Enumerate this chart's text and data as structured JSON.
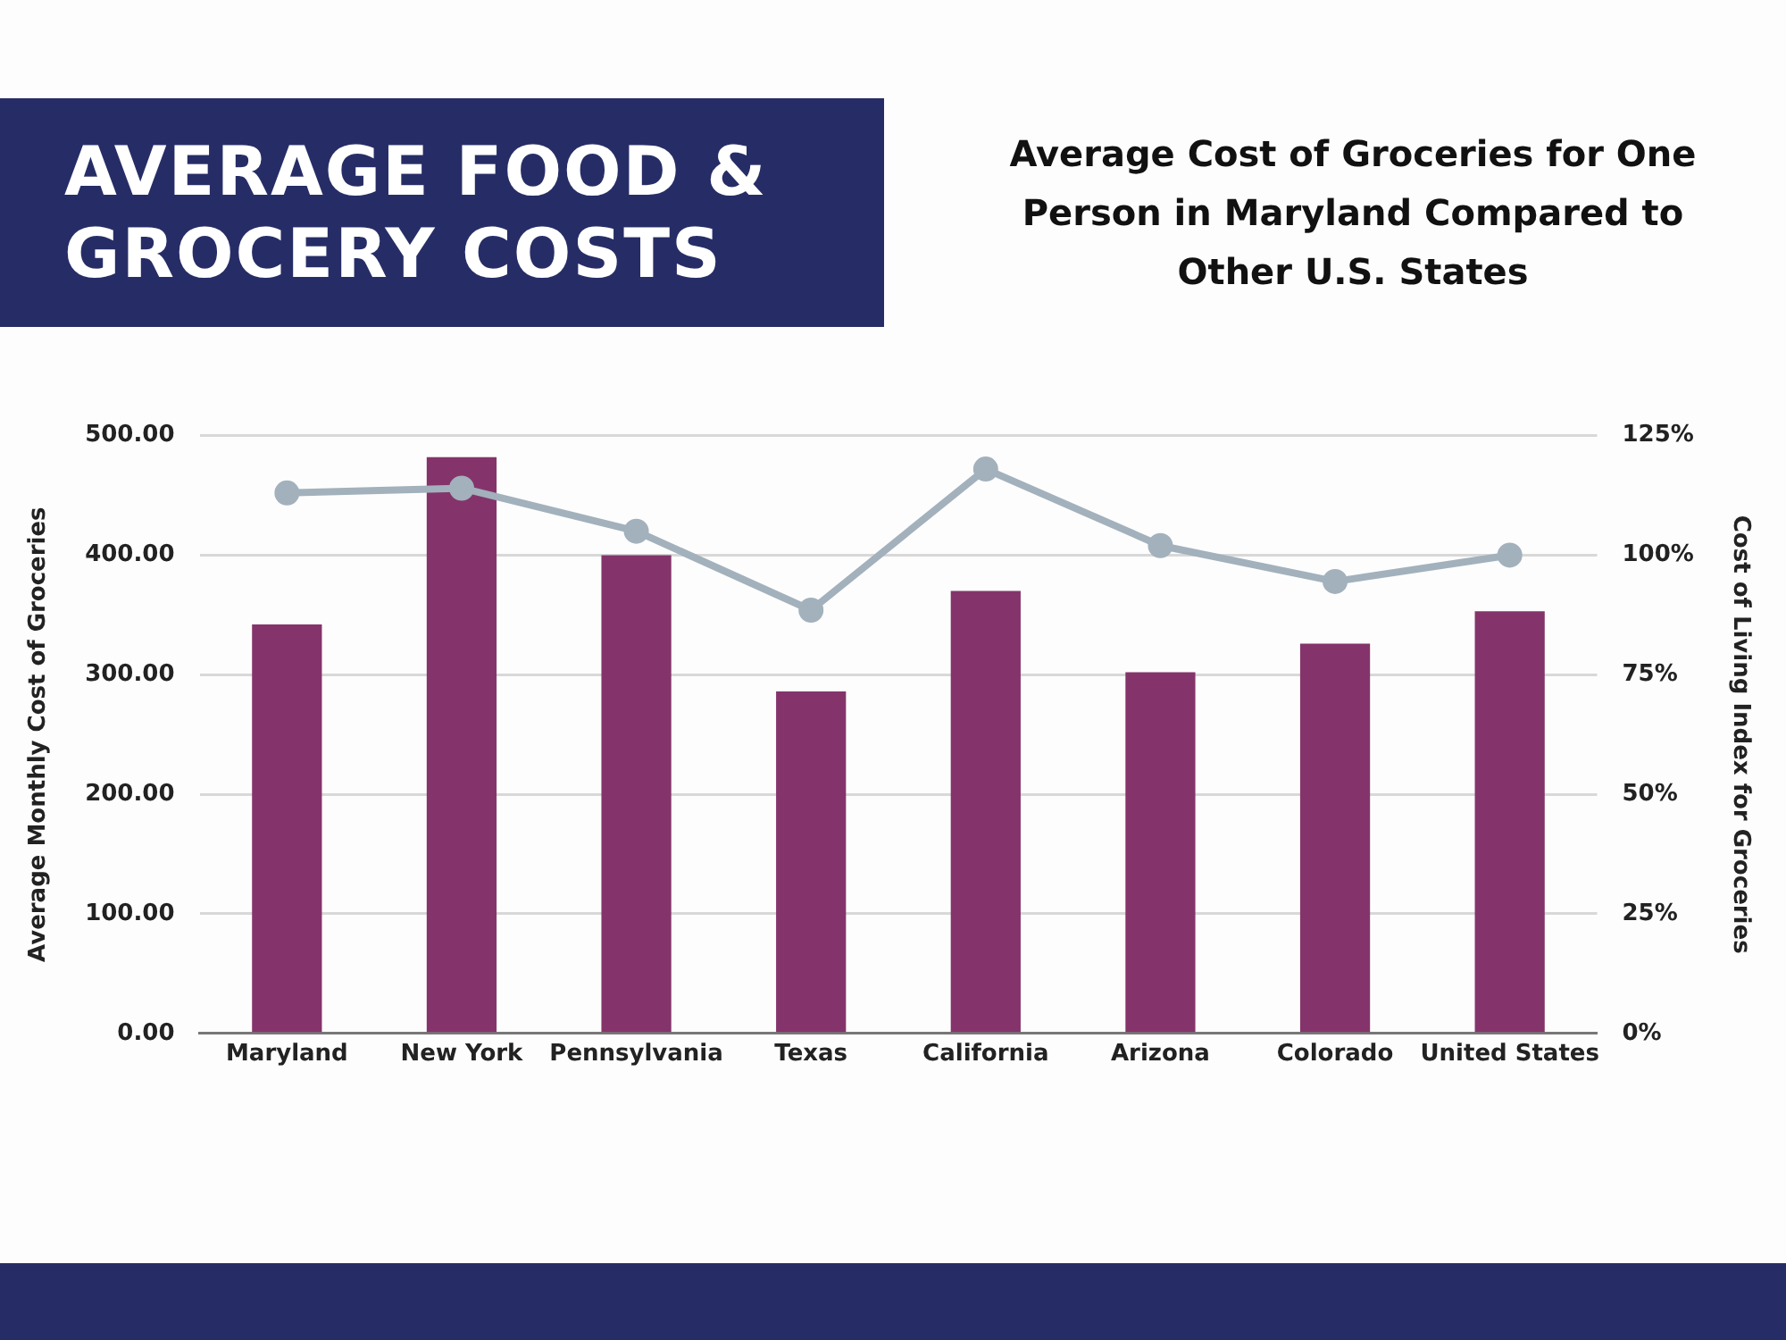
{
  "chart_data": {
    "type": "bar",
    "title": "AVERAGE FOOD & GROCERY COSTS",
    "subtitle": "Average Cost of Groceries for One Person in Maryland Compared to Other U.S. States",
    "categories": [
      "Maryland",
      "New York",
      "Pennsylvania",
      "Texas",
      "California",
      "Arizona",
      "Colorado",
      "United States"
    ],
    "series": [
      {
        "color": "#84346b",
        "values": [
          342,
          482,
          400,
          286,
          370,
          302,
          326,
          353
        ]
      },
      {
        "type": "line",
        "axis": "y2",
        "color": "#a2b1bc",
        "values": [
          113,
          114,
          105,
          88.5,
          118,
          102,
          94.5,
          100
        ]
      }
    ],
    "ylabel": "Average Monthly Cost of Groceries",
    "y2label": "Cost of Living Index for Groceries",
    "ylim": [
      0,
      500
    ],
    "yticks": [
      {
        "value": 0,
        "label": "0.00"
      },
      {
        "value": 100,
        "label": "100.00"
      },
      {
        "value": 200,
        "label": "200.00"
      },
      {
        "value": 300,
        "label": "300.00"
      },
      {
        "value": 400,
        "label": "400.00"
      },
      {
        "value": 500,
        "label": "500.00"
      }
    ],
    "y2lim": [
      0,
      125
    ],
    "y2ticks": [
      {
        "value": 0,
        "label": "0%"
      },
      {
        "value": 25,
        "label": "25%"
      },
      {
        "value": 50,
        "label": "50%"
      },
      {
        "value": 75,
        "label": "75%"
      },
      {
        "value": 100,
        "label": "100%"
      },
      {
        "value": 125,
        "label": "125%"
      }
    ],
    "grid": "y",
    "legend": false,
    "marker": "circle",
    "line_style": "solid"
  }
}
